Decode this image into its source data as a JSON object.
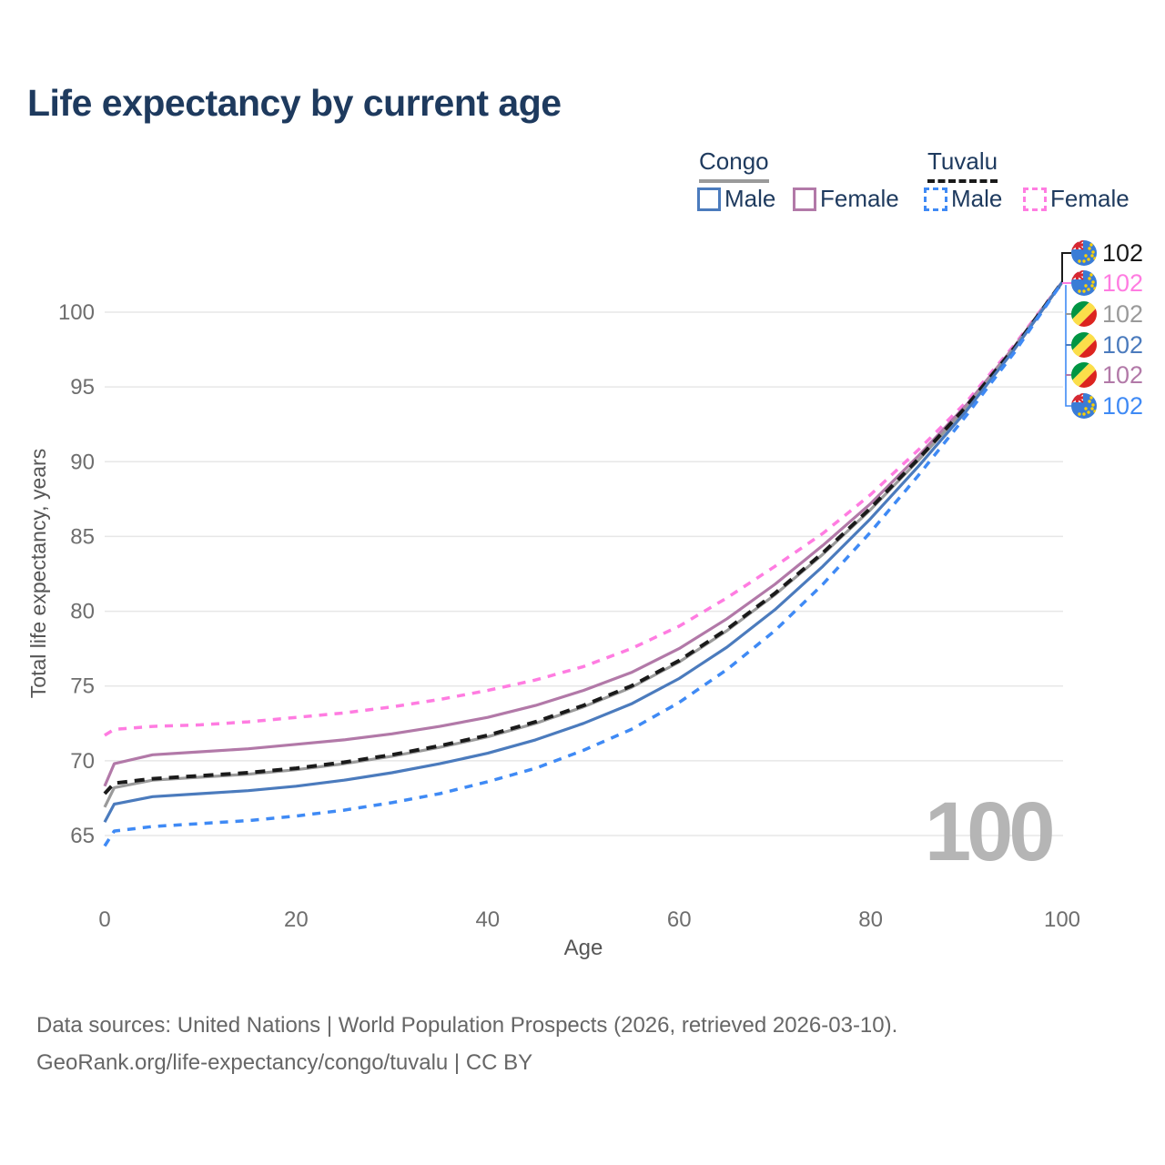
{
  "header": {
    "title": "Life expectancy by current age"
  },
  "legend": {
    "groups": [
      {
        "label": "Congo",
        "line_color": "#9a9a9a",
        "line_style": "solid"
      },
      {
        "label": "Tuvalu",
        "line_color": "#1a1a1a",
        "line_style": "dashed"
      }
    ],
    "items": [
      {
        "label": "Male",
        "country": "Congo",
        "color": "#4b7bbd",
        "style": "solid"
      },
      {
        "label": "Female",
        "country": "Congo",
        "color": "#b279a8",
        "style": "solid"
      },
      {
        "label": "Male",
        "country": "Tuvalu",
        "color": "#3f8af5",
        "style": "dashed"
      },
      {
        "label": "Female",
        "country": "Tuvalu",
        "color": "#ff7ce1",
        "style": "dashed"
      }
    ]
  },
  "chart_data": {
    "type": "line",
    "title": "Life expectancy by current age",
    "xlabel": "Age",
    "ylabel": "Total life expectancy, years",
    "x_ticks": [
      0,
      20,
      40,
      60,
      80,
      100
    ],
    "y_ticks": [
      65,
      70,
      75,
      80,
      85,
      90,
      95,
      100
    ],
    "xlim": [
      0,
      100
    ],
    "ylim": [
      63.5,
      103
    ],
    "grid": "horizontal",
    "legend_position": "top-right",
    "x": [
      0,
      1,
      5,
      10,
      15,
      20,
      25,
      30,
      35,
      40,
      45,
      50,
      55,
      60,
      65,
      70,
      75,
      80,
      85,
      90,
      95,
      100
    ],
    "series": [
      {
        "name": "Tuvalu Female",
        "country": "Tuvalu",
        "sex": "Female",
        "color": "#ff7ce1",
        "dash": "9 8",
        "width": 3.5,
        "values": [
          71.7,
          72.1,
          72.3,
          72.4,
          72.6,
          72.9,
          73.2,
          73.6,
          74.1,
          74.7,
          75.4,
          76.3,
          77.5,
          79.0,
          80.9,
          83.0,
          85.2,
          87.8,
          90.8,
          94.0,
          97.8,
          102
        ]
      },
      {
        "name": "Congo Female",
        "country": "Congo",
        "sex": "Female",
        "color": "#b279a8",
        "dash": null,
        "width": 3.2,
        "values": [
          68.3,
          69.8,
          70.4,
          70.6,
          70.8,
          71.1,
          71.4,
          71.8,
          72.3,
          72.9,
          73.7,
          74.7,
          75.9,
          77.5,
          79.5,
          81.8,
          84.4,
          87.2,
          90.4,
          93.8,
          97.7,
          102
        ]
      },
      {
        "name": "Congo",
        "country": "Congo",
        "sex": "Both",
        "color": "#9a9a9a",
        "dash": null,
        "width": 3.2,
        "values": [
          66.9,
          68.2,
          68.7,
          68.9,
          69.1,
          69.4,
          69.8,
          70.3,
          70.9,
          71.6,
          72.5,
          73.6,
          74.9,
          76.6,
          78.7,
          81.1,
          83.8,
          86.8,
          90.1,
          93.6,
          97.6,
          102
        ]
      },
      {
        "name": "Tuvalu",
        "country": "Tuvalu",
        "sex": "Both",
        "color": "#1a1a1a",
        "dash": "11 8",
        "width": 4,
        "values": [
          67.8,
          68.5,
          68.8,
          69.0,
          69.2,
          69.5,
          69.9,
          70.4,
          71.0,
          71.7,
          72.6,
          73.7,
          75.0,
          76.7,
          78.8,
          81.2,
          83.9,
          86.9,
          90.2,
          93.7,
          97.6,
          102
        ]
      },
      {
        "name": "Congo Male",
        "country": "Congo",
        "sex": "Male",
        "color": "#4b7bbd",
        "dash": null,
        "width": 3.2,
        "values": [
          65.9,
          67.1,
          67.6,
          67.8,
          68.0,
          68.3,
          68.7,
          69.2,
          69.8,
          70.5,
          71.4,
          72.5,
          73.8,
          75.5,
          77.6,
          80.1,
          83.0,
          86.2,
          89.7,
          93.4,
          97.5,
          102
        ]
      },
      {
        "name": "Tuvalu Male",
        "country": "Tuvalu",
        "sex": "Male",
        "color": "#3f8af5",
        "dash": "9 8",
        "width": 3.5,
        "values": [
          64.3,
          65.3,
          65.6,
          65.8,
          66.0,
          66.3,
          66.7,
          67.2,
          67.8,
          68.6,
          69.5,
          70.7,
          72.1,
          73.9,
          76.1,
          78.7,
          81.8,
          85.3,
          89.1,
          93.1,
          97.3,
          102
        ]
      }
    ],
    "end_labels": [
      {
        "flag": "tuvalu",
        "series": "Tuvalu",
        "value": "102",
        "color": "#1a1a1a"
      },
      {
        "flag": "tuvalu",
        "series": "Tuvalu Female",
        "value": "102",
        "color": "#ff7ce1"
      },
      {
        "flag": "congo",
        "series": "Congo",
        "value": "102",
        "color": "#9a9a9a"
      },
      {
        "flag": "congo",
        "series": "Congo Male",
        "value": "102",
        "color": "#4b7bbd"
      },
      {
        "flag": "congo",
        "series": "Congo Female",
        "value": "102",
        "color": "#b279a8"
      },
      {
        "flag": "tuvalu",
        "series": "Tuvalu Male",
        "value": "102",
        "color": "#3f8af5"
      }
    ]
  },
  "watermark": "100",
  "footer": {
    "line1": "Data sources: United Nations | World Population Prospects (2026, retrieved 2026-03-10).",
    "line2": "GeoRank.org/life-expectancy/congo/tuvalu | CC BY"
  },
  "colors": {
    "title": "#1e3a5e",
    "tick": "#6e6e6e",
    "axis_label": "#565656",
    "grid": "#e7e7e7",
    "watermark": "#b5b5b5",
    "footer": "#666666"
  }
}
